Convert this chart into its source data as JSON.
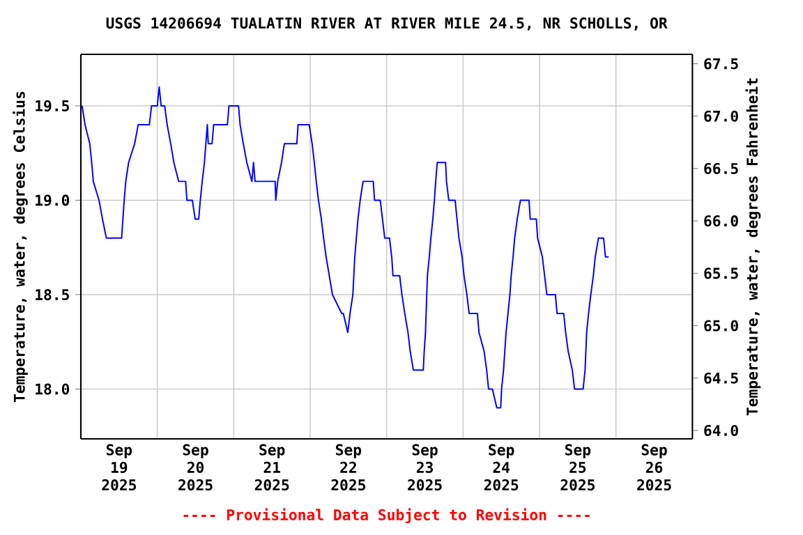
{
  "chart_data": {
    "type": "line",
    "title": "USGS 14206694 TUALATIN RIVER AT RIVER MILE 24.5, NR SCHOLLS, OR",
    "ylabel": "Temperature, water, degrees Celsius",
    "y2label": "Temperature, water, degrees Fahrenheit",
    "annotations": [
      "---- Provisional Data Subject to Revision ----"
    ],
    "xlim": [
      "2025-09-19T00:00",
      "2025-09-27T00:00"
    ],
    "xticks": [
      {
        "value": "2025-09-19T12:00",
        "label": "Sep 19 2025"
      },
      {
        "value": "2025-09-20T12:00",
        "label": "Sep 20 2025"
      },
      {
        "value": "2025-09-21T12:00",
        "label": "Sep 21 2025"
      },
      {
        "value": "2025-09-22T12:00",
        "label": "Sep 22 2025"
      },
      {
        "value": "2025-09-23T12:00",
        "label": "Sep 23 2025"
      },
      {
        "value": "2025-09-24T12:00",
        "label": "Sep 24 2025"
      },
      {
        "value": "2025-09-25T12:00",
        "label": "Sep 25 2025"
      },
      {
        "value": "2025-09-26T12:00",
        "label": "Sep 26 2025"
      },
      {
        "value": "2025-09-20T00:00",
        "label": null
      },
      {
        "value": "2025-09-21T00:00",
        "label": null
      },
      {
        "value": "2025-09-22T00:00",
        "label": null
      },
      {
        "value": "2025-09-23T00:00",
        "label": null
      },
      {
        "value": "2025-09-24T00:00",
        "label": null
      },
      {
        "value": "2025-09-25T00:00",
        "label": null
      },
      {
        "value": "2025-09-26T00:00",
        "label": null
      }
    ],
    "ylim": [
      17.736,
      19.773
    ],
    "yticks": [
      {
        "value": 18,
        "label": "18.0"
      },
      {
        "value": 18.5,
        "label": "18.5"
      },
      {
        "value": 19,
        "label": "19.0"
      },
      {
        "value": 19.5,
        "label": "19.5"
      }
    ],
    "y2lim": [
      63.92,
      67.59
    ],
    "y2ticks": [
      {
        "value": 64,
        "label": "64.0"
      },
      {
        "value": 64.5,
        "label": "64.5"
      },
      {
        "value": 65,
        "label": "65.0"
      },
      {
        "value": 65.5,
        "label": "65.5"
      },
      {
        "value": 66,
        "label": "66.0"
      },
      {
        "value": 66.5,
        "label": "66.5"
      },
      {
        "value": 67,
        "label": "67.0"
      },
      {
        "value": 67.5,
        "label": "67.5"
      }
    ],
    "grid": true,
    "series": [
      {
        "color": "#0000ff",
        "x": [
          "2025-09-19T00:24",
          "2025-09-19T01:18",
          "2025-09-19T02:48",
          "2025-09-19T03:24",
          "2025-09-19T03:54",
          "2025-09-19T05:42",
          "2025-09-19T06:48",
          "2025-09-19T08:00",
          "2025-09-19T12:48",
          "2025-09-19T13:12",
          "2025-09-19T13:36",
          "2025-09-19T14:06",
          "2025-09-19T15:00",
          "2025-09-19T16:54",
          "2025-09-19T18:00",
          "2025-09-19T21:30",
          "2025-09-19T22:12",
          "2025-09-20T00:00",
          "2025-09-20T00:36",
          "2025-09-20T01:12",
          "2025-09-20T02:18",
          "2025-09-20T03:06",
          "2025-09-20T04:12",
          "2025-09-20T05:12",
          "2025-09-20T06:42",
          "2025-09-20T08:54",
          "2025-09-20T09:18",
          "2025-09-20T11:00",
          "2025-09-20T11:54",
          "2025-09-20T13:00",
          "2025-09-20T13:30",
          "2025-09-20T14:06",
          "2025-09-20T14:48",
          "2025-09-20T15:42",
          "2025-09-20T16:00",
          "2025-09-20T17:12",
          "2025-09-20T17:42",
          "2025-09-20T22:00",
          "2025-09-20T22:30",
          "2025-09-21T01:30",
          "2025-09-21T02:00",
          "2025-09-21T03:00",
          "2025-09-21T04:06",
          "2025-09-21T05:42",
          "2025-09-21T06:12",
          "2025-09-21T06:42",
          "2025-09-21T13:00",
          "2025-09-21T13:12",
          "2025-09-21T13:48",
          "2025-09-21T15:00",
          "2025-09-21T15:54",
          "2025-09-21T19:48",
          "2025-09-21T20:12",
          "2025-09-21T23:42",
          "2025-09-22T00:36",
          "2025-09-22T01:18",
          "2025-09-22T01:54",
          "2025-09-22T02:36",
          "2025-09-22T03:30",
          "2025-09-22T04:12",
          "2025-09-22T05:00",
          "2025-09-22T06:00",
          "2025-09-22T07:00",
          "2025-09-22T09:54",
          "2025-09-22T10:24",
          "2025-09-22T11:48",
          "2025-09-22T12:30",
          "2025-09-22T13:24",
          "2025-09-22T14:00",
          "2025-09-22T15:00",
          "2025-09-22T15:42",
          "2025-09-22T16:36",
          "2025-09-22T19:48",
          "2025-09-22T20:12",
          "2025-09-22T22:00",
          "2025-09-22T22:42",
          "2025-09-22T23:24",
          "2025-09-23T00:54",
          "2025-09-23T01:36",
          "2025-09-23T02:00",
          "2025-09-23T04:06",
          "2025-09-23T04:48",
          "2025-09-23T05:42",
          "2025-09-23T06:42",
          "2025-09-23T07:24",
          "2025-09-23T08:24",
          "2025-09-23T11:30",
          "2025-09-23T11:48",
          "2025-09-23T12:12",
          "2025-09-23T12:48",
          "2025-09-23T13:24",
          "2025-09-23T13:54",
          "2025-09-23T14:30",
          "2025-09-23T15:00",
          "2025-09-23T15:24",
          "2025-09-23T15:54",
          "2025-09-23T18:30",
          "2025-09-23T18:48",
          "2025-09-23T19:30",
          "2025-09-23T21:30",
          "2025-09-23T22:06",
          "2025-09-23T22:42",
          "2025-09-23T23:42",
          "2025-09-24T00:18",
          "2025-09-24T01:12",
          "2025-09-24T01:54",
          "2025-09-24T04:30",
          "2025-09-24T05:00",
          "2025-09-24T06:36",
          "2025-09-24T07:24",
          "2025-09-24T08:00",
          "2025-09-24T09:12",
          "2025-09-24T10:36",
          "2025-09-24T11:48",
          "2025-09-24T12:06",
          "2025-09-24T12:42",
          "2025-09-24T13:06",
          "2025-09-24T13:30",
          "2025-09-24T14:06",
          "2025-09-24T14:42",
          "2025-09-24T15:06",
          "2025-09-24T15:42",
          "2025-09-24T16:12",
          "2025-09-24T17:00",
          "2025-09-24T18:00",
          "2025-09-24T20:42",
          "2025-09-24T21:06",
          "2025-09-24T23:00",
          "2025-09-24T23:24",
          "2025-09-25T00:54",
          "2025-09-25T01:36",
          "2025-09-25T02:18",
          "2025-09-25T05:00",
          "2025-09-25T05:30",
          "2025-09-25T07:36",
          "2025-09-25T08:12",
          "2025-09-25T09:00",
          "2025-09-25T10:18",
          "2025-09-25T11:00",
          "2025-09-25T13:42",
          "2025-09-25T14:18",
          "2025-09-25T14:48",
          "2025-09-25T15:24",
          "2025-09-25T16:06",
          "2025-09-25T16:54",
          "2025-09-25T17:30",
          "2025-09-25T18:30",
          "2025-09-25T20:06",
          "2025-09-25T20:42",
          "2025-09-25T21:42"
        ],
        "values": [
          19.5,
          19.4,
          19.3,
          19.2,
          19.1,
          19.0,
          18.9,
          18.8,
          18.8,
          18.9,
          19.0,
          19.1,
          19.2,
          19.3,
          19.4,
          19.4,
          19.5,
          19.5,
          19.6,
          19.5,
          19.5,
          19.4,
          19.3,
          19.2,
          19.1,
          19.1,
          19.0,
          19.0,
          18.9,
          18.9,
          19.0,
          19.1,
          19.2,
          19.4,
          19.3,
          19.3,
          19.4,
          19.4,
          19.5,
          19.5,
          19.4,
          19.3,
          19.2,
          19.1,
          19.2,
          19.1,
          19.1,
          19.0,
          19.1,
          19.2,
          19.3,
          19.3,
          19.4,
          19.4,
          19.3,
          19.2,
          19.1,
          19.0,
          18.9,
          18.8,
          18.7,
          18.6,
          18.5,
          18.4,
          18.4,
          18.3,
          18.4,
          18.5,
          18.7,
          18.9,
          19.0,
          19.1,
          19.1,
          19.0,
          19.0,
          18.9,
          18.8,
          18.8,
          18.7,
          18.6,
          18.6,
          18.5,
          18.4,
          18.3,
          18.2,
          18.1,
          18.1,
          18.2,
          18.3,
          18.6,
          18.7,
          18.8,
          18.9,
          19.0,
          19.1,
          19.2,
          19.2,
          19.1,
          19.0,
          19.0,
          18.9,
          18.8,
          18.7,
          18.6,
          18.5,
          18.4,
          18.4,
          18.3,
          18.2,
          18.1,
          18.0,
          18.0,
          17.9,
          17.9,
          18.0,
          18.1,
          18.2,
          18.3,
          18.4,
          18.5,
          18.6,
          18.7,
          18.8,
          18.9,
          19.0,
          19.0,
          18.9,
          18.9,
          18.8,
          18.7,
          18.6,
          18.5,
          18.5,
          18.4,
          18.4,
          18.3,
          18.2,
          18.1,
          18.0,
          18.0,
          18.1,
          18.3,
          18.4,
          18.5,
          18.6,
          18.7,
          18.8,
          18.8,
          18.7,
          18.7
        ]
      }
    ]
  }
}
